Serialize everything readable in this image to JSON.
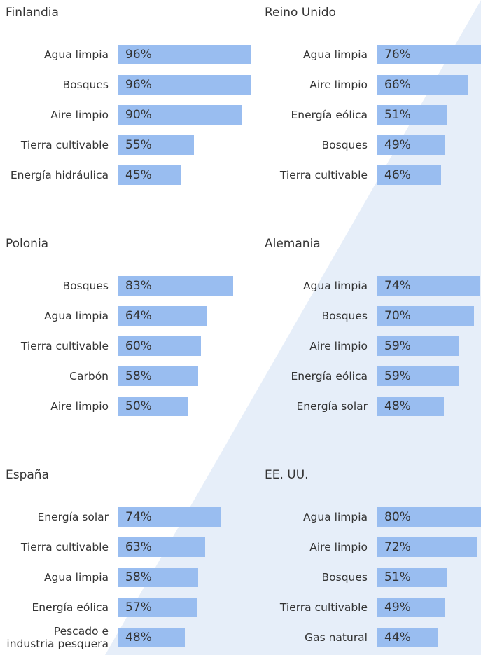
{
  "chart_data": [
    {
      "type": "bar",
      "title": "Finlandia",
      "color": "#99bdf0",
      "categories": [
        "Agua limpia",
        "Bosques",
        "Aire limpio",
        "Tierra cultivable",
        "Energía hidráulica"
      ],
      "values": [
        96,
        96,
        90,
        55,
        45
      ],
      "value_labels": [
        "96%",
        "96%",
        "90%",
        "55%",
        "45%"
      ]
    },
    {
      "type": "bar",
      "title": "Reino Unido",
      "color": "#99bdf0",
      "categories": [
        "Agua limpia",
        "Aire limpio",
        "Energía eólica",
        "Bosques",
        "Tierra cultivable"
      ],
      "values": [
        76,
        66,
        51,
        49,
        46
      ],
      "value_labels": [
        "76%",
        "66%",
        "51%",
        "49%",
        "46%"
      ]
    },
    {
      "type": "bar",
      "title": "Polonia",
      "color": "#99bdf0",
      "categories": [
        "Bosques",
        "Agua limpia",
        "Tierra cultivable",
        "Carbón",
        "Aire limpio"
      ],
      "values": [
        83,
        64,
        60,
        58,
        50
      ],
      "value_labels": [
        "83%",
        "64%",
        "60%",
        "58%",
        "50%"
      ]
    },
    {
      "type": "bar",
      "title": "Alemania",
      "color": "#99bdf0",
      "categories": [
        "Agua limpia",
        "Bosques",
        "Aire limpio",
        "Energía eólica",
        "Energía solar"
      ],
      "values": [
        74,
        70,
        59,
        59,
        48
      ],
      "value_labels": [
        "74%",
        "70%",
        "59%",
        "59%",
        "48%"
      ]
    },
    {
      "type": "bar",
      "title": "España",
      "color": "#99bdf0",
      "categories": [
        "Energía solar",
        "Tierra cultivable",
        "Agua limpia",
        "Energía eólica",
        "Pescado e industria pesquera"
      ],
      "values": [
        74,
        63,
        58,
        57,
        48
      ],
      "value_labels": [
        "74%",
        "63%",
        "58%",
        "57%",
        "48%"
      ]
    },
    {
      "type": "bar",
      "title": "EE. UU.",
      "color": "#99bdf0",
      "categories": [
        "Agua limpia",
        "Aire limpio",
        "Bosques",
        "Tierra cultivable",
        "Gas natural"
      ],
      "values": [
        80,
        72,
        51,
        49,
        44
      ],
      "value_labels": [
        "80%",
        "72%",
        "51%",
        "49%",
        "44%"
      ]
    }
  ]
}
